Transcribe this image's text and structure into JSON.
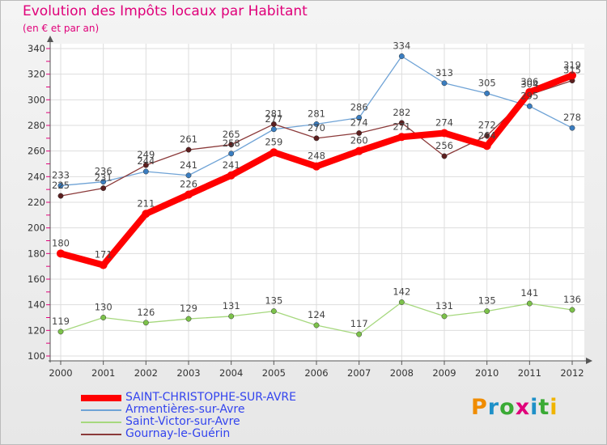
{
  "title": "Evolution des Impôts locaux par Habitant",
  "subtitle": "(en € et par an)",
  "brand": {
    "text": "Proxiti",
    "letter_colors": [
      "#f08c00",
      "#1e90c8",
      "#3aaa35",
      "#e0007a",
      "#1e90c8",
      "#3aaa35",
      "#f0b400"
    ]
  },
  "chart_data": {
    "type": "line",
    "title": "Evolution des Impôts locaux par Habitant",
    "subtitle": "(en € et par an)",
    "x": [
      "2000",
      "2001",
      "2002",
      "2003",
      "2004",
      "2005",
      "2006",
      "2007",
      "2008",
      "2009",
      "2010",
      "2011",
      "2012"
    ],
    "ylim": [
      100,
      340
    ],
    "yticks": [
      100,
      120,
      140,
      160,
      180,
      200,
      220,
      240,
      260,
      280,
      300,
      320,
      340
    ],
    "grid": true,
    "legend_position": "bottom-left",
    "series": [
      {
        "name": "SAINT-CHRISTOPHE-SUR-AVRE",
        "color": "#ff0000",
        "marker_color": "#ff0000",
        "emphasis": true,
        "values": [
          180,
          171,
          211,
          226,
          241,
          259,
          248,
          260,
          271,
          274,
          264,
          306,
          319
        ]
      },
      {
        "name": "Armentières-sur-Avre",
        "color": "#6fa3d6",
        "marker_color": "#3a7dc0",
        "values": [
          233,
          236,
          244,
          241,
          258,
          277,
          281,
          286,
          334,
          313,
          305,
          295,
          278
        ]
      },
      {
        "name": "Saint-Victor-sur-Avre",
        "color": "#a6d87e",
        "marker_color": "#7cc24a",
        "values": [
          119,
          130,
          126,
          129,
          131,
          135,
          124,
          117,
          142,
          131,
          135,
          141,
          136
        ]
      },
      {
        "name": "Gournay-le-Guérin",
        "color": "#8b3a3a",
        "marker_color": "#5c1f1f",
        "values": [
          225,
          231,
          249,
          261,
          265,
          281,
          270,
          274,
          282,
          256,
          272,
          304,
          315
        ]
      }
    ]
  }
}
